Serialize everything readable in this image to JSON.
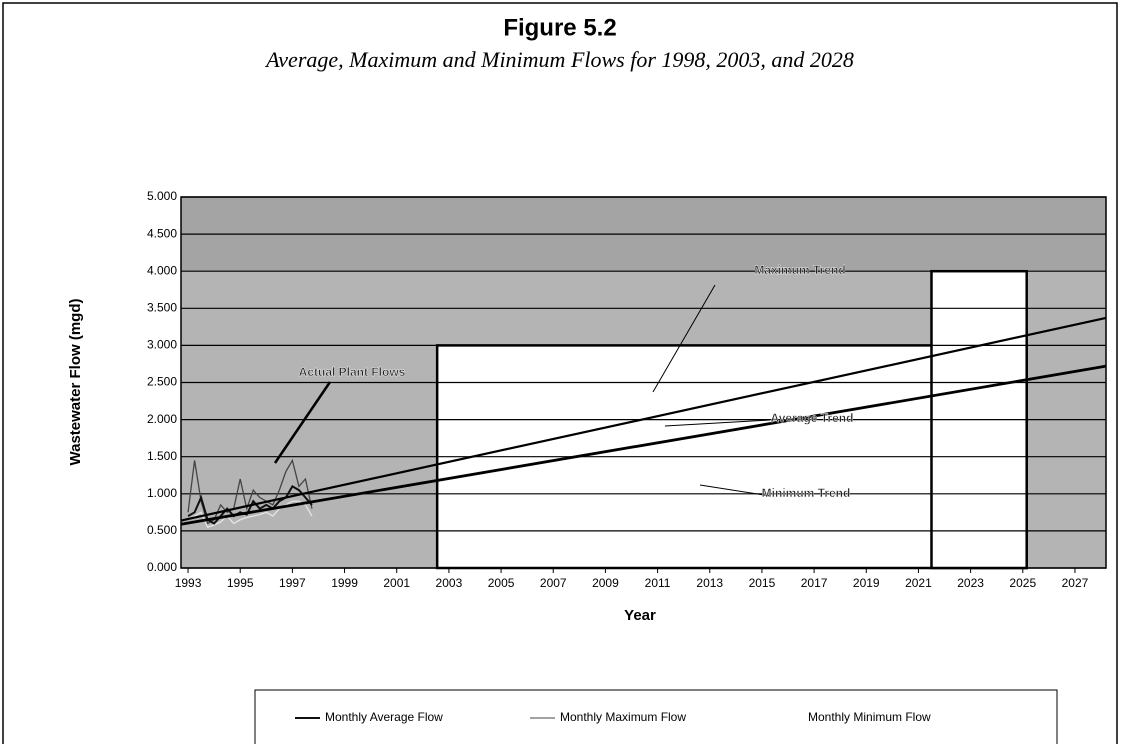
{
  "chart_data": {
    "type": "line",
    "title": "Figure 5.2",
    "subtitle": "Average, Maximum and Minimum Flows for 1998, 2003, and 2028",
    "y_label": "Wastewater Flow (mgd)",
    "x_label": "Year",
    "xlim": [
      1992.73,
      2028.19
    ],
    "xticks": [
      1993,
      1995,
      1997,
      1999,
      2001,
      2003,
      2005,
      2007,
      2009,
      2011,
      2013,
      2015,
      2017,
      2019,
      2021,
      2023,
      2025,
      2027
    ],
    "ylim": [
      0,
      5
    ],
    "yticks": [
      {
        "value": 0,
        "label": "0.000"
      },
      {
        "value": 0.5,
        "label": "0.500"
      },
      {
        "value": 1,
        "label": "1.000"
      },
      {
        "value": 1.5,
        "label": "1.500"
      },
      {
        "value": 2,
        "label": "2.000"
      },
      {
        "value": 2.5,
        "label": "2.500"
      },
      {
        "value": 3,
        "label": "3.000"
      },
      {
        "value": 3.5,
        "label": "3.500"
      },
      {
        "value": 4,
        "label": "4.000"
      },
      {
        "value": 4.5,
        "label": "4.500"
      },
      {
        "value": 5,
        "label": "5.000"
      }
    ],
    "grid": true,
    "x": [
      1993,
      1993.25,
      1993.5,
      1993.75,
      1994,
      1994.25,
      1994.5,
      1994.75,
      1995,
      1995.25,
      1995.5,
      1995.75,
      1996,
      1996.25,
      1996.5,
      1996.75,
      1997,
      1997.25,
      1997.5,
      1997.75
    ],
    "series": [
      {
        "name": "Monthly Average Flow",
        "color": "#111111",
        "values": [
          0.7,
          0.75,
          0.95,
          0.65,
          0.6,
          0.7,
          0.8,
          0.7,
          0.75,
          0.72,
          0.9,
          0.8,
          0.85,
          0.8,
          0.9,
          0.95,
          1.1,
          1.05,
          0.95,
          0.85
        ]
      },
      {
        "name": "Monthly Maximum Flow",
        "color": "#444444",
        "values": [
          0.75,
          1.45,
          0.9,
          0.6,
          0.65,
          0.85,
          0.75,
          0.8,
          1.2,
          0.8,
          1.05,
          0.95,
          0.9,
          0.85,
          1.05,
          1.3,
          1.45,
          1.1,
          1.2,
          0.8
        ]
      },
      {
        "name": "Monthly Minimum Flow",
        "color": "#e6e6e6",
        "values": [
          0.65,
          0.7,
          0.75,
          0.55,
          0.58,
          0.62,
          0.7,
          0.6,
          0.65,
          0.68,
          0.7,
          0.72,
          0.75,
          0.7,
          0.8,
          0.85,
          0.9,
          0.9,
          0.85,
          0.7
        ]
      }
    ],
    "trends": [
      {
        "name": "Maximum Trend",
        "x": [
          1992.73,
          2028.19
        ],
        "values": [
          0.64,
          3.37
        ]
      },
      {
        "name": "Average Trend",
        "x": [
          1992.73,
          2028.19
        ],
        "values": [
          0.59,
          2.72
        ]
      }
    ],
    "capacity_boxes": [
      {
        "xlim": [
          2002.55,
          2025.15
        ],
        "top": 3.0
      },
      {
        "xlim": [
          2021.5,
          2025.15
        ],
        "top": 4.0
      }
    ],
    "annotations": [
      "Actual Plant Flows",
      "Maximum Trend",
      "Average Trend",
      "Minimum Trend"
    ]
  }
}
